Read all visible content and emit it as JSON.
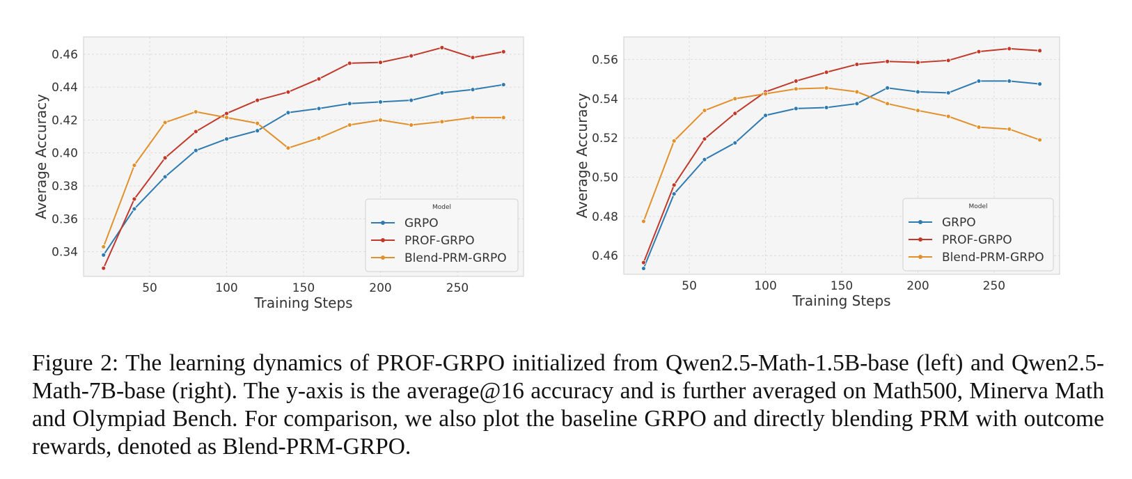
{
  "colors": {
    "GRPO": "#2f7bb0",
    "PROF-GRPO": "#c0392b",
    "Blend-PRM-GRPO": "#e2902c",
    "panel_bg": "#f5f5f5",
    "grid": "#dcdcdc"
  },
  "chart_data": [
    {
      "type": "line",
      "xlabel": "Training Steps",
      "ylabel": "Average Accuracy",
      "xlim": [
        7,
        293
      ],
      "ylim": [
        0.325,
        0.4705
      ],
      "xticks": [
        "50",
        "100",
        "150",
        "200",
        "250"
      ],
      "yticks": [
        "0.34",
        "0.36",
        "0.38",
        "0.40",
        "0.42",
        "0.44",
        "0.46"
      ],
      "grid": true,
      "legend": {
        "title": "Model",
        "position": "lower-right"
      },
      "x": [
        20,
        40,
        60,
        80,
        100,
        120,
        140,
        160,
        180,
        200,
        220,
        240,
        260,
        280
      ],
      "series": [
        {
          "name": "GRPO",
          "values": [
            0.338,
            0.366,
            0.3855,
            0.4015,
            0.4085,
            0.4135,
            0.4245,
            0.427,
            0.43,
            0.431,
            0.432,
            0.4365,
            0.4385,
            0.4415
          ]
        },
        {
          "name": "PROF-GRPO",
          "values": [
            0.33,
            0.372,
            0.397,
            0.413,
            0.424,
            0.432,
            0.437,
            0.445,
            0.4545,
            0.455,
            0.459,
            0.464,
            0.458,
            0.4615
          ]
        },
        {
          "name": "Blend-PRM-GRPO",
          "values": [
            0.343,
            0.3925,
            0.4185,
            0.425,
            0.4215,
            0.418,
            0.403,
            0.409,
            0.417,
            0.42,
            0.417,
            0.419,
            0.4215,
            0.4215
          ]
        }
      ]
    },
    {
      "type": "line",
      "xlabel": "Training Steps",
      "ylabel": "Average Accuracy",
      "xlim": [
        7,
        293
      ],
      "ylim": [
        0.4505,
        0.5715
      ],
      "xticks": [
        "50",
        "100",
        "150",
        "200",
        "250"
      ],
      "yticks": [
        "0.46",
        "0.48",
        "0.50",
        "0.52",
        "0.54",
        "0.56"
      ],
      "grid": true,
      "legend": {
        "title": "Model",
        "position": "lower-right"
      },
      "x": [
        20,
        40,
        60,
        80,
        100,
        120,
        140,
        160,
        180,
        200,
        220,
        240,
        260,
        280
      ],
      "series": [
        {
          "name": "GRPO",
          "values": [
            0.4535,
            0.4915,
            0.509,
            0.5175,
            0.5315,
            0.535,
            0.5355,
            0.5375,
            0.5455,
            0.5435,
            0.543,
            0.549,
            0.549,
            0.5475
          ]
        },
        {
          "name": "PROF-GRPO",
          "values": [
            0.4565,
            0.496,
            0.5195,
            0.5325,
            0.5435,
            0.549,
            0.5535,
            0.5575,
            0.559,
            0.5585,
            0.5595,
            0.564,
            0.5655,
            0.5645
          ]
        },
        {
          "name": "Blend-PRM-GRPO",
          "values": [
            0.4775,
            0.5185,
            0.534,
            0.54,
            0.5425,
            0.545,
            0.5455,
            0.5435,
            0.5375,
            0.534,
            0.531,
            0.5255,
            0.5245,
            0.519
          ]
        }
      ]
    }
  ],
  "caption": {
    "label": "Figure 2:",
    "text": "The learning dynamics of PROF-GRPO initialized from Qwen2.5-Math-1.5B-base (left) and Qwen2.5-Math-7B-base (right). The y-axis is the average@16 accuracy and is further averaged on Math500, Minerva Math and Olympiad Bench. For comparison, we also plot the baseline GRPO and directly blending PRM with outcome rewards, denoted as Blend-PRM-GRPO."
  }
}
